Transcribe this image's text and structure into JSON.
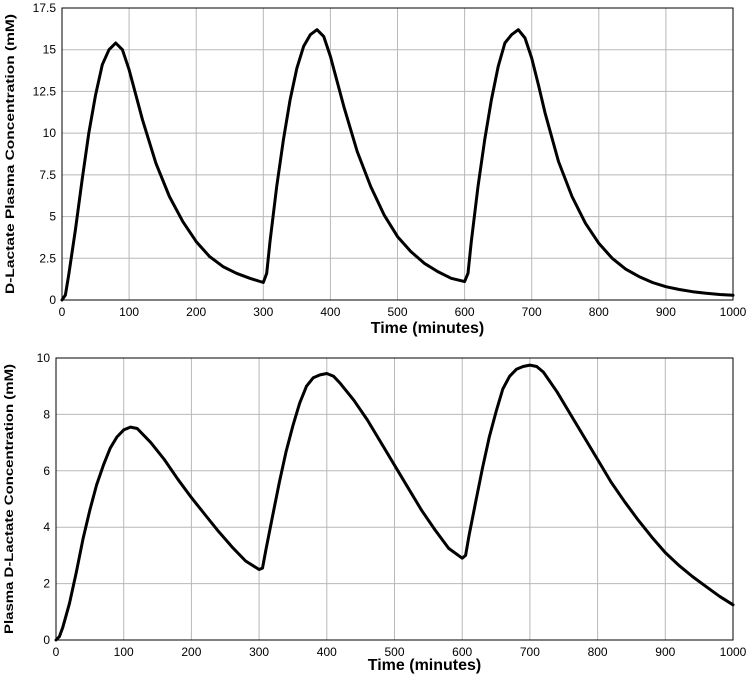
{
  "chart_data": [
    {
      "type": "line",
      "xlabel": "Time  (minutes)",
      "ylabel": "D-Lactate Plasma Concentration (mM)",
      "xlim": [
        0,
        1000
      ],
      "ylim": [
        0,
        17.5
      ],
      "x_ticks": [
        0,
        100,
        200,
        300,
        400,
        500,
        600,
        700,
        800,
        900,
        1000
      ],
      "y_ticks": [
        "0",
        "2.5",
        "5",
        "7.5",
        "10",
        "12.5",
        "15",
        "17.5"
      ],
      "grid": true,
      "series": [
        {
          "x": [
            0,
            5,
            10,
            20,
            30,
            40,
            50,
            60,
            70,
            80,
            90,
            100,
            110,
            120,
            140,
            160,
            180,
            200,
            220,
            240,
            260,
            280,
            300,
            305,
            310,
            320,
            330,
            340,
            350,
            360,
            370,
            380,
            390,
            400,
            410,
            420,
            440,
            460,
            480,
            500,
            520,
            540,
            560,
            580,
            600,
            605,
            610,
            620,
            630,
            640,
            650,
            660,
            670,
            680,
            690,
            700,
            710,
            720,
            740,
            760,
            780,
            800,
            820,
            840,
            860,
            880,
            900,
            920,
            940,
            960,
            980,
            1000
          ],
          "y": [
            0,
            0.3,
            1.5,
            4.2,
            7.2,
            10,
            12.3,
            14.1,
            15,
            15.4,
            15,
            13.8,
            12.3,
            10.8,
            8.2,
            6.2,
            4.7,
            3.5,
            2.6,
            2,
            1.6,
            1.3,
            1.05,
            1.6,
            3.5,
            6.8,
            9.6,
            12,
            13.9,
            15.2,
            15.9,
            16.2,
            15.8,
            14.6,
            13.1,
            11.6,
            8.9,
            6.8,
            5.1,
            3.8,
            2.9,
            2.2,
            1.7,
            1.3,
            1.1,
            1.6,
            3.5,
            6.8,
            9.6,
            12,
            14,
            15.4,
            15.9,
            16.2,
            15.7,
            14.5,
            12.9,
            11.2,
            8.3,
            6.2,
            4.6,
            3.4,
            2.5,
            1.85,
            1.4,
            1.05,
            0.8,
            0.63,
            0.5,
            0.4,
            0.33,
            0.28
          ]
        }
      ]
    },
    {
      "type": "line",
      "xlabel": "Time (minutes)",
      "ylabel": "Plasma D-Lactate Concentration  (mM)",
      "xlim": [
        0,
        1000
      ],
      "ylim": [
        0,
        10
      ],
      "x_ticks": [
        0,
        100,
        200,
        300,
        400,
        500,
        600,
        700,
        800,
        900,
        1000
      ],
      "y_ticks": [
        "0",
        "2",
        "4",
        "6",
        "8",
        "10"
      ],
      "grid": true,
      "series": [
        {
          "x": [
            0,
            5,
            10,
            20,
            30,
            40,
            50,
            60,
            70,
            80,
            90,
            100,
            110,
            120,
            140,
            160,
            180,
            200,
            220,
            240,
            260,
            280,
            300,
            305,
            310,
            320,
            330,
            340,
            350,
            360,
            370,
            380,
            390,
            400,
            410,
            420,
            440,
            460,
            480,
            500,
            520,
            540,
            560,
            580,
            600,
            605,
            610,
            620,
            630,
            640,
            650,
            660,
            670,
            680,
            690,
            700,
            710,
            720,
            740,
            760,
            780,
            800,
            820,
            840,
            860,
            880,
            900,
            920,
            940,
            960,
            980,
            1000
          ],
          "y": [
            0,
            0.12,
            0.45,
            1.3,
            2.4,
            3.6,
            4.6,
            5.5,
            6.2,
            6.8,
            7.2,
            7.45,
            7.55,
            7.5,
            7,
            6.4,
            5.7,
            5.05,
            4.45,
            3.85,
            3.3,
            2.8,
            2.5,
            2.55,
            3.2,
            4.4,
            5.6,
            6.7,
            7.6,
            8.4,
            9,
            9.3,
            9.4,
            9.45,
            9.35,
            9.1,
            8.5,
            7.8,
            7,
            6.2,
            5.4,
            4.6,
            3.9,
            3.25,
            2.9,
            3,
            3.7,
            4.9,
            6.1,
            7.2,
            8.1,
            8.9,
            9.35,
            9.6,
            9.7,
            9.75,
            9.7,
            9.5,
            8.8,
            8,
            7.2,
            6.4,
            5.6,
            4.9,
            4.25,
            3.65,
            3.1,
            2.65,
            2.25,
            1.9,
            1.55,
            1.25
          ]
        }
      ]
    }
  ]
}
